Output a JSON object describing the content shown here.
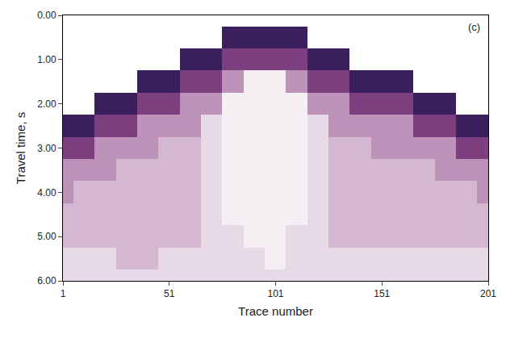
{
  "chart_data": {
    "type": "heatmap",
    "panel_label": "(c)",
    "x_label": "Trace number",
    "y_label": "Travel time, s",
    "x": [
      1,
      11,
      21,
      31,
      41,
      51,
      61,
      71,
      81,
      91,
      101,
      111,
      121,
      131,
      141,
      151,
      161,
      171,
      181,
      191,
      201
    ],
    "y": [
      0,
      0.5,
      1,
      1.5,
      2,
      2.5,
      3,
      3.5,
      4,
      4.5,
      5,
      5.5,
      6
    ],
    "values": [
      [
        0,
        0,
        0,
        0,
        0,
        0,
        0,
        0,
        0,
        0,
        0,
        0,
        0,
        0,
        0,
        0,
        0,
        0,
        0,
        0,
        0
      ],
      [
        0,
        0,
        0,
        0,
        0,
        0,
        0,
        0,
        8,
        8,
        8,
        8,
        0,
        0,
        0,
        0,
        0,
        0,
        0,
        0,
        0
      ],
      [
        0,
        0,
        0,
        0,
        0,
        0,
        8,
        8,
        6,
        6,
        6,
        6,
        8,
        8,
        0,
        0,
        0,
        0,
        0,
        0,
        0
      ],
      [
        0,
        0,
        0,
        0,
        8,
        8,
        6,
        6,
        4,
        1,
        1,
        4,
        6,
        6,
        8,
        8,
        8,
        0,
        0,
        0,
        0
      ],
      [
        0,
        0,
        8,
        8,
        6,
        6,
        4,
        4,
        1,
        1,
        1,
        1,
        4,
        4,
        6,
        6,
        6,
        8,
        8,
        0,
        0
      ],
      [
        8,
        8,
        6,
        6,
        4,
        4,
        4,
        2,
        1,
        1,
        1,
        1,
        2,
        4,
        4,
        4,
        4,
        6,
        6,
        8,
        8
      ],
      [
        6,
        6,
        4,
        4,
        4,
        3,
        3,
        2,
        1,
        1,
        1,
        1,
        2,
        3,
        3,
        4,
        4,
        4,
        4,
        6,
        6
      ],
      [
        4,
        4,
        4,
        3,
        3,
        3,
        3,
        2,
        1,
        1,
        1,
        1,
        2,
        3,
        3,
        3,
        3,
        3,
        4,
        4,
        4
      ],
      [
        4,
        3,
        3,
        3,
        3,
        3,
        3,
        2,
        1,
        1,
        1,
        1,
        2,
        3,
        3,
        3,
        3,
        3,
        3,
        3,
        4
      ],
      [
        3,
        3,
        3,
        3,
        3,
        3,
        3,
        2,
        1,
        1,
        1,
        1,
        2,
        3,
        3,
        3,
        3,
        3,
        3,
        3,
        3
      ],
      [
        3,
        3,
        3,
        3,
        3,
        3,
        3,
        2,
        2,
        1,
        1,
        2,
        2,
        3,
        3,
        3,
        3,
        3,
        3,
        3,
        3
      ],
      [
        2,
        2,
        2,
        3,
        3,
        2,
        2,
        2,
        2,
        2,
        1,
        2,
        2,
        2,
        2,
        2,
        2,
        2,
        2,
        2,
        2
      ],
      [
        2,
        2,
        2,
        2,
        2,
        2,
        2,
        2,
        2,
        2,
        2,
        2,
        2,
        2,
        2,
        2,
        2,
        2,
        2,
        2,
        2
      ]
    ],
    "xlim": [
      1,
      201
    ],
    "xticks": [
      1,
      51,
      101,
      151,
      201
    ],
    "ylim": [
      6,
      0
    ],
    "yticks": [
      {
        "value": 0,
        "label": "0.00"
      },
      {
        "value": 1,
        "label": "1.00"
      },
      {
        "value": 2,
        "label": "2.00"
      },
      {
        "value": 3,
        "label": "3.00"
      },
      {
        "value": 4,
        "label": "4.00"
      },
      {
        "value": 5,
        "label": "5.00"
      },
      {
        "value": 6,
        "label": "6.00"
      }
    ],
    "grid": false
  }
}
